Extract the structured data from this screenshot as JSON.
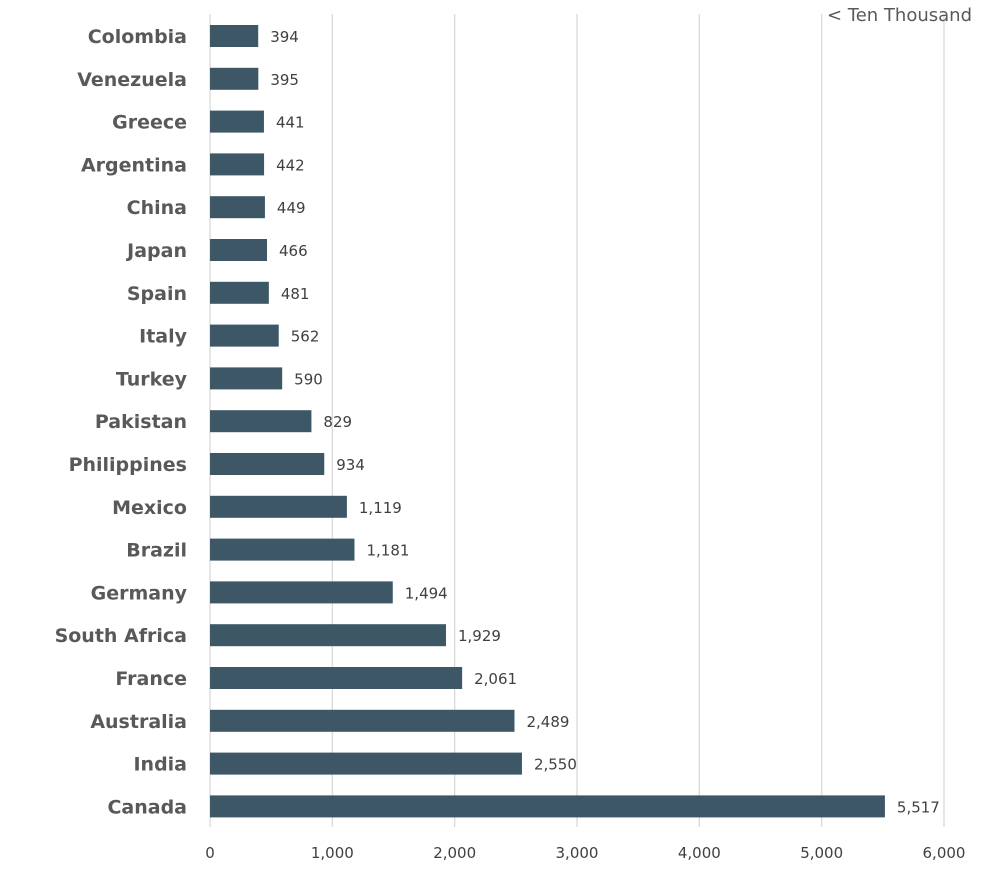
{
  "chart_data": {
    "type": "bar",
    "orientation": "horizontal",
    "unit_note": "< Ten Thousand",
    "categories": [
      "Colombia",
      "Venezuela",
      "Greece",
      "Argentina",
      "China",
      "Japan",
      "Spain",
      "Italy",
      "Turkey",
      "Pakistan",
      "Philippines",
      "Mexico",
      "Brazil",
      "Germany",
      "South Africa",
      "France",
      "Australia",
      "India",
      "Canada"
    ],
    "values": [
      394,
      395,
      441,
      442,
      449,
      466,
      481,
      562,
      590,
      829,
      934,
      1119,
      1181,
      1494,
      1929,
      2061,
      2489,
      2550,
      5517
    ],
    "value_labels": [
      "394",
      "395",
      "441",
      "442",
      "449",
      "466",
      "481",
      "562",
      "590",
      "829",
      "934",
      "1,119",
      "1,181",
      "1,494",
      "1,929",
      "2,061",
      "2,489",
      "2,550",
      "5,517"
    ],
    "xlim": [
      0,
      6000
    ],
    "xticks": [
      0,
      1000,
      2000,
      3000,
      4000,
      5000,
      6000
    ],
    "xtick_labels": [
      "0",
      "1,000",
      "2,000",
      "3,000",
      "4,000",
      "5,000",
      "6,000"
    ],
    "grid": "vertical",
    "bar_color": "#3d5766",
    "grid_color": "#d9d9d9"
  }
}
